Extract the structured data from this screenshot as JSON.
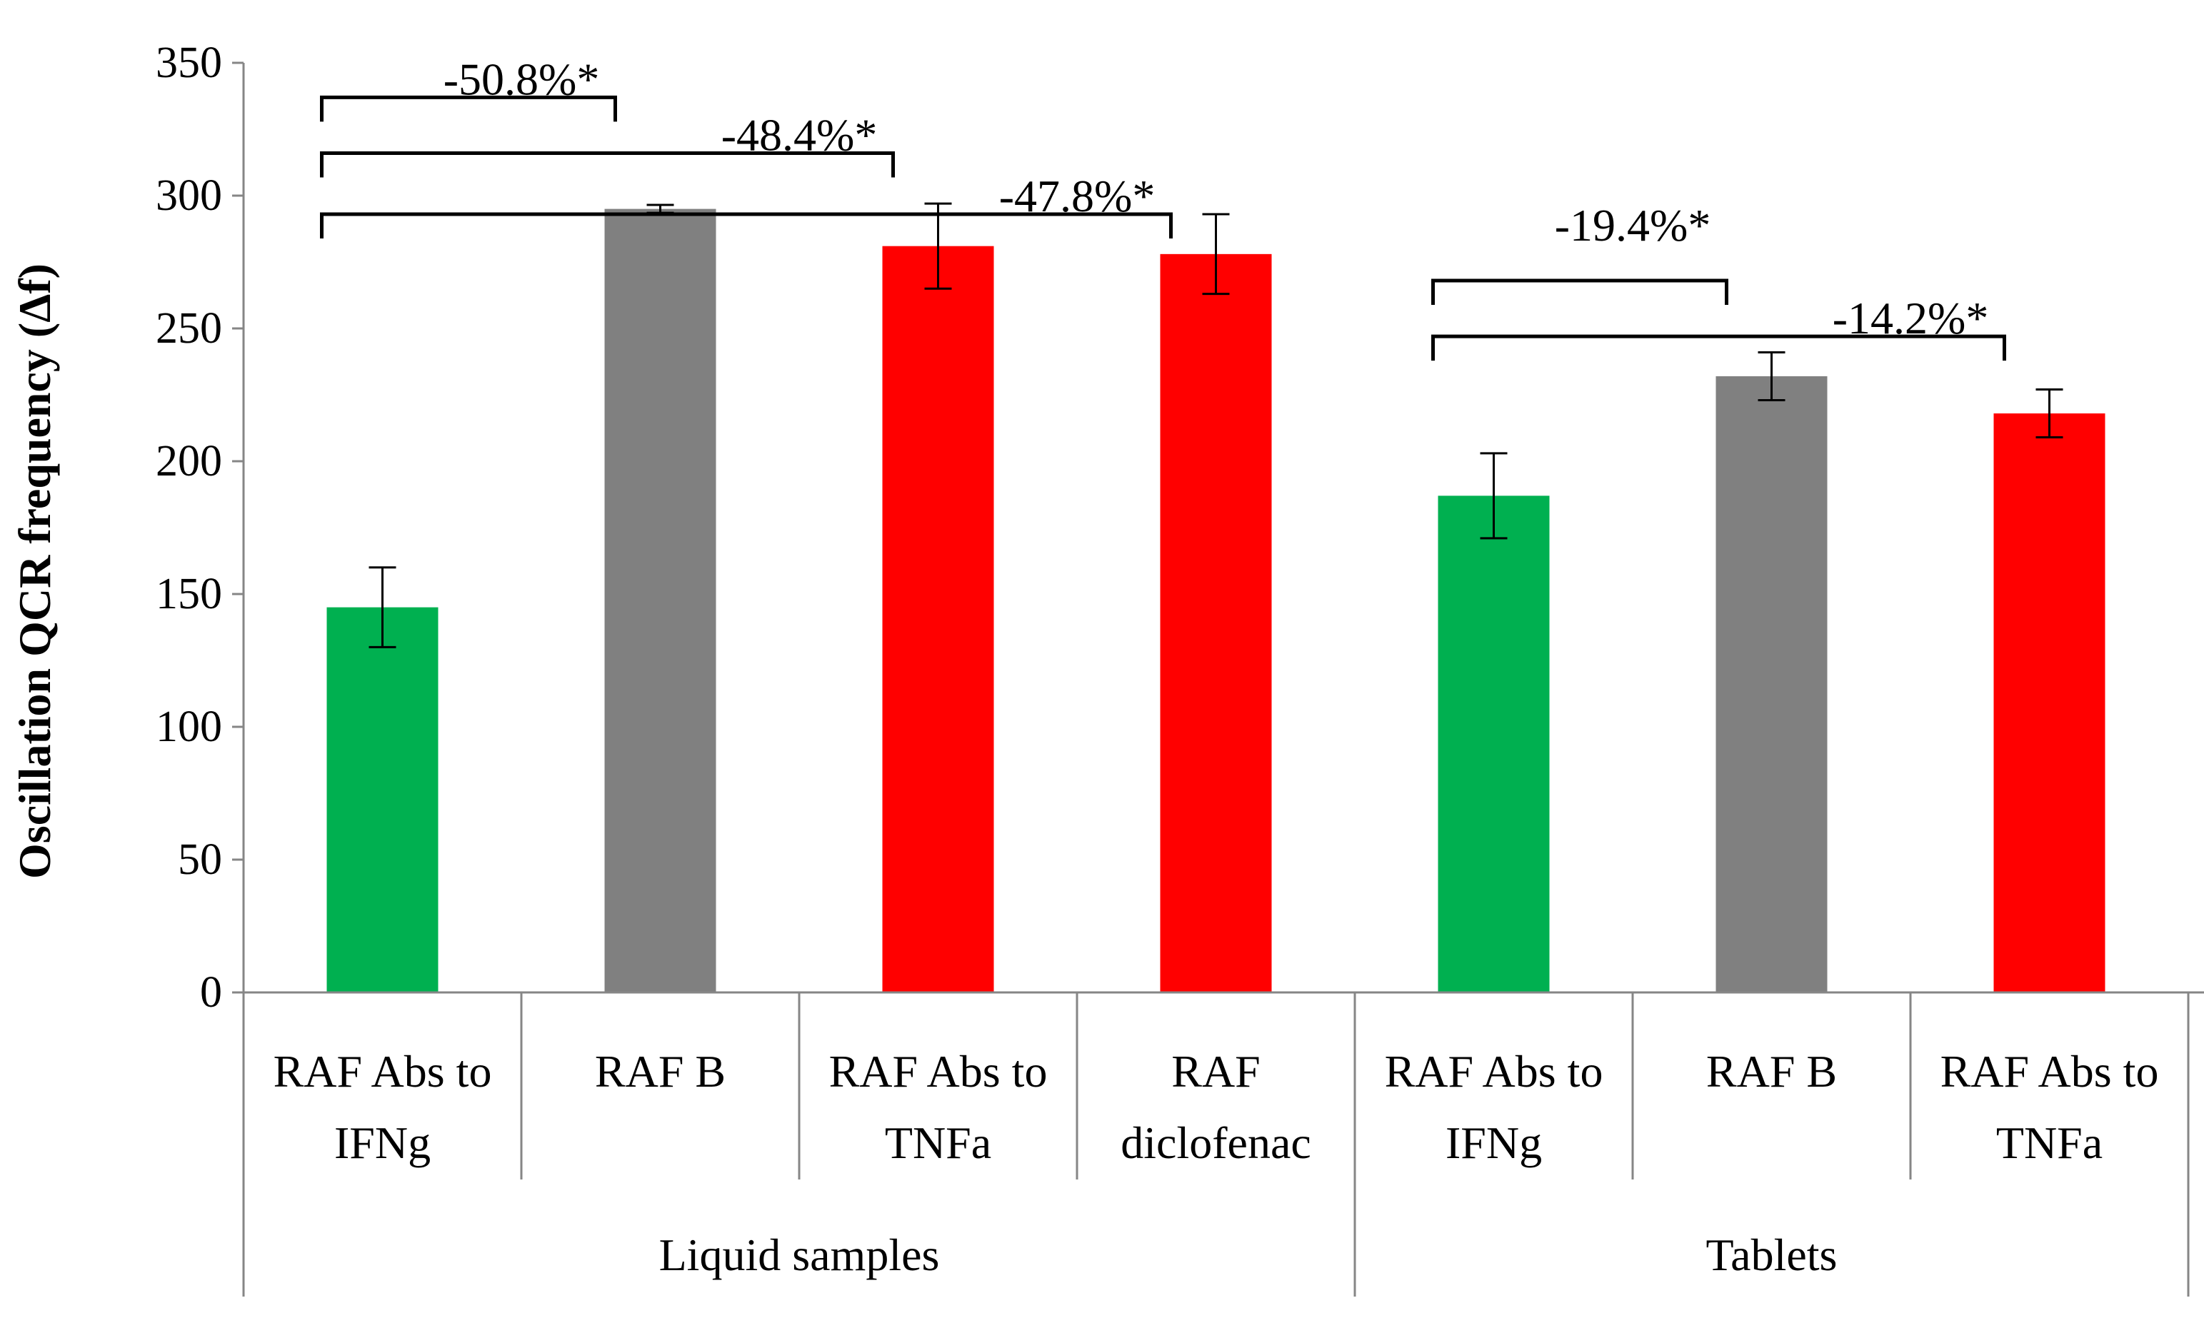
{
  "chart_data": {
    "type": "bar",
    "title": "",
    "xlabel": "",
    "ylabel": "Oscillation QCR frequency (Δf)",
    "ylim": [
      0,
      350
    ],
    "yticks": [
      0,
      50,
      100,
      150,
      200,
      250,
      300,
      350
    ],
    "grid": false,
    "legend": "none",
    "groups": [
      {
        "label": "Liquid samples",
        "size": 4
      },
      {
        "label": "Tablets",
        "size": 3
      }
    ],
    "categories": [
      [
        "RAF Abs to",
        "IFNg"
      ],
      [
        "RAF B"
      ],
      [
        "RAF Abs to",
        "TNFa"
      ],
      [
        "RAF",
        "diclofenac"
      ],
      [
        "RAF Abs to",
        "IFNg"
      ],
      [
        "RAF B"
      ],
      [
        "RAF Abs to",
        "TNFa"
      ]
    ],
    "values": [
      145,
      295,
      281,
      278,
      187,
      232,
      218
    ],
    "errors": [
      15,
      1.5,
      16,
      15,
      16,
      9,
      9
    ],
    "colors": [
      "#00b050",
      "#808080",
      "#ff0000",
      "#ff0000",
      "#00b050",
      "#808080",
      "#ff0000"
    ],
    "annotations": [
      {
        "text": "-50.8%*",
        "from": 0,
        "to": 1,
        "bracket_y": 337,
        "label_x": 0.5,
        "label_y": 344
      },
      {
        "text": "-48.4%*",
        "from": 0,
        "to": 2,
        "bracket_y": 316,
        "label_x": 1.5,
        "label_y": 323
      },
      {
        "text": "-47.8%*",
        "from": 0,
        "to": 3,
        "bracket_y": 293,
        "label_x": 2.5,
        "label_y": 300
      },
      {
        "text": "-19.4%*",
        "from": 4,
        "to": 5,
        "bracket_y": 268,
        "label_x": 4.5,
        "label_y": 289
      },
      {
        "text": "-14.2%*",
        "from": 4,
        "to": 6,
        "bracket_y": 247,
        "label_x": 5.5,
        "label_y": 254
      }
    ]
  }
}
